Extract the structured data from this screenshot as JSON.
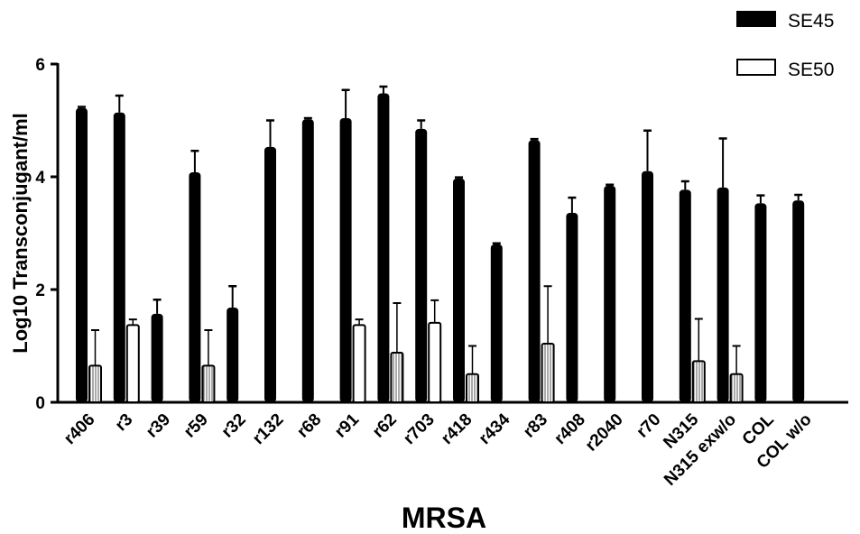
{
  "chart_data": {
    "type": "bar",
    "xlabel": "MRSA",
    "ylabel": "Log10 Transconjugant/ml",
    "ylim": [
      0,
      6
    ],
    "yticks": [
      0,
      2,
      4,
      6
    ],
    "legend_position": "top-right",
    "categories": [
      "r406",
      "r3",
      "r39",
      "r59",
      "r32",
      "r132",
      "r68",
      "r91",
      "r62",
      "r703",
      "r418",
      "r434",
      "r83",
      "r408",
      "r2040",
      "r70",
      "N315",
      "N315 exw/o",
      "COL",
      "COL w/o"
    ],
    "series": [
      {
        "name": "SE45",
        "color": "#000000",
        "values": [
          5.22,
          5.14,
          1.57,
          4.08,
          1.68,
          4.53,
          5.02,
          5.04,
          5.48,
          4.85,
          3.97,
          2.8,
          4.65,
          3.36,
          3.84,
          4.1,
          3.77,
          3.81,
          3.53,
          3.58
        ],
        "errors": [
          0.02,
          0.3,
          0.25,
          0.38,
          0.38,
          0.47,
          0.02,
          0.5,
          0.12,
          0.15,
          0.02,
          0.02,
          0.02,
          0.27,
          0.02,
          0.72,
          0.15,
          0.87,
          0.14,
          0.1
        ]
      },
      {
        "name": "SE50",
        "color": "#ffffff",
        "values": [
          0.65,
          1.37,
          null,
          0.65,
          null,
          null,
          null,
          1.37,
          0.88,
          1.41,
          0.5,
          null,
          1.04,
          null,
          null,
          null,
          0.73,
          0.5,
          null,
          null
        ],
        "errors": [
          0.63,
          0.1,
          null,
          0.63,
          null,
          null,
          null,
          0.1,
          0.88,
          0.4,
          0.5,
          null,
          1.02,
          null,
          null,
          null,
          0.75,
          0.5,
          null,
          null
        ]
      }
    ]
  }
}
